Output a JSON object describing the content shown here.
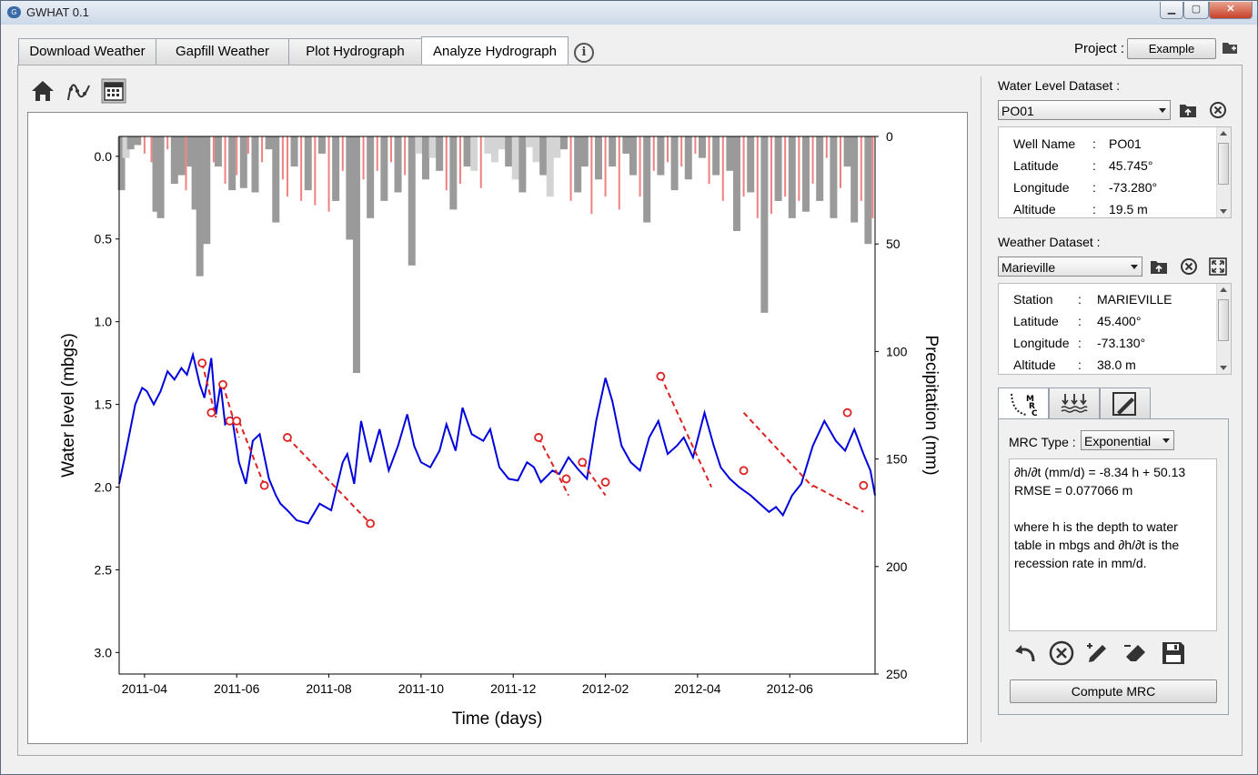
{
  "window": {
    "title": "GWHAT 0.1",
    "app_icon": "G"
  },
  "tabs": [
    {
      "label": "Download Weather"
    },
    {
      "label": "Gapfill Weather"
    },
    {
      "label": "Plot Hydrograph"
    },
    {
      "label": "Analyze Hydrograph",
      "active": true
    }
  ],
  "project": {
    "label": "Project :",
    "name": "Example"
  },
  "water_level": {
    "label": "Water Level Dataset :",
    "selected": "PO01",
    "rows": [
      {
        "key": "Well Name",
        "sep": ":",
        "value": "PO01"
      },
      {
        "key": "Latitude",
        "sep": ":",
        "value": "45.745°"
      },
      {
        "key": "Longitude",
        "sep": ":",
        "value": "-73.280°"
      },
      {
        "key": "Altitude",
        "sep": ":",
        "value": "19.5 m"
      }
    ]
  },
  "weather": {
    "label": "Weather Dataset :",
    "selected": "Marieville",
    "rows": [
      {
        "key": "Station",
        "sep": ":",
        "value": "MARIEVILLE"
      },
      {
        "key": "Latitude",
        "sep": ":",
        "value": "45.400°"
      },
      {
        "key": "Longitude",
        "sep": ":",
        "value": "-73.130°"
      },
      {
        "key": "Altitude",
        "sep": ":",
        "value": "38.0 m"
      }
    ]
  },
  "mrc": {
    "type_label": "MRC Type :",
    "type_selected": "Exponential",
    "result_lines": [
      "∂h/∂t (mm/d) = -8.34 h + 50.13",
      "RMSE = 0.077066 m",
      "",
      "where h is the depth to water",
      "table in mbgs and ∂h/∂t is the",
      "recession rate in mm/d."
    ],
    "compute_label": "Compute MRC"
  },
  "chart_data": {
    "type": "line",
    "xlabel": "Time (days)",
    "ylabel": "Water level (mbgs)",
    "y2label": "Precipitation (mm)",
    "x_ticks": [
      "2011-04",
      "2011-06",
      "2011-08",
      "2011-10",
      "2011-12",
      "2012-02",
      "2012-04",
      "2012-06"
    ],
    "x_tick_months": [
      1,
      3,
      5,
      7,
      9,
      11,
      13,
      15
    ],
    "xlim_months": [
      0.45,
      16.85
    ],
    "ylim": [
      3.13,
      -0.12
    ],
    "y_ticks": [
      0.0,
      0.5,
      1.0,
      1.5,
      2.0,
      2.5,
      3.0
    ],
    "y2lim": [
      0,
      250
    ],
    "y2_ticks": [
      0,
      50,
      100,
      150,
      200,
      250
    ],
    "colors": {
      "water_level": "#0000dd",
      "rain": "#f08080",
      "snow": "#9a9a9a",
      "snow_light": "#d4d4d4",
      "mrc": "#dd2222"
    },
    "water_level_series": {
      "name": "Water level",
      "x_months": [
        0.45,
        0.6,
        0.8,
        0.95,
        1.05,
        1.2,
        1.35,
        1.5,
        1.65,
        1.8,
        1.92,
        2.05,
        2.2,
        2.3,
        2.45,
        2.55,
        2.65,
        2.75,
        2.9,
        3.05,
        3.2,
        3.35,
        3.5,
        3.7,
        3.85,
        3.95,
        4.1,
        4.3,
        4.55,
        4.8,
        5.05,
        5.3,
        5.4,
        5.55,
        5.7,
        5.9,
        6.1,
        6.3,
        6.5,
        6.7,
        6.85,
        7.0,
        7.2,
        7.4,
        7.55,
        7.75,
        7.9,
        8.1,
        8.35,
        8.5,
        8.7,
        8.9,
        9.1,
        9.3,
        9.45,
        9.6,
        9.85,
        10.0,
        10.2,
        10.4,
        10.6,
        10.8,
        11.0,
        11.15,
        11.35,
        11.55,
        11.75,
        11.95,
        12.15,
        12.35,
        12.55,
        12.7,
        12.9,
        13.15,
        13.35,
        13.5,
        13.7,
        13.9,
        14.15,
        14.35,
        14.55,
        14.7,
        14.85,
        15.05,
        15.25,
        15.5,
        15.75,
        16.0,
        16.2,
        16.4,
        16.6,
        16.75,
        16.85
      ],
      "y": [
        1.98,
        1.78,
        1.5,
        1.4,
        1.42,
        1.5,
        1.42,
        1.3,
        1.35,
        1.28,
        1.32,
        1.2,
        1.38,
        1.46,
        1.22,
        1.56,
        1.38,
        1.62,
        1.58,
        1.85,
        1.98,
        1.72,
        1.68,
        1.95,
        2.05,
        2.1,
        2.14,
        2.2,
        2.22,
        2.1,
        2.14,
        1.85,
        1.8,
        1.98,
        1.6,
        1.85,
        1.65,
        1.9,
        1.75,
        1.56,
        1.75,
        1.85,
        1.88,
        1.78,
        1.62,
        1.78,
        1.52,
        1.68,
        1.72,
        1.65,
        1.88,
        1.95,
        1.96,
        1.85,
        1.88,
        1.97,
        1.9,
        1.92,
        1.82,
        1.89,
        1.95,
        1.6,
        1.34,
        1.48,
        1.75,
        1.85,
        1.9,
        1.7,
        1.6,
        1.8,
        1.75,
        1.7,
        1.82,
        1.55,
        1.75,
        1.88,
        1.95,
        2.0,
        2.05,
        2.1,
        2.15,
        2.12,
        2.17,
        2.05,
        1.98,
        1.75,
        1.6,
        1.72,
        1.78,
        1.65,
        1.8,
        1.9,
        2.05
      ]
    },
    "mrc_points": {
      "x_months": [
        2.25,
        2.45,
        2.7,
        2.85,
        3.0,
        3.6,
        4.1,
        5.9,
        9.55,
        10.15,
        10.5,
        11.0,
        12.2,
        14.0,
        16.25,
        16.6
      ],
      "y": [
        1.25,
        1.55,
        1.38,
        1.6,
        1.6,
        1.99,
        1.7,
        2.22,
        1.7,
        1.95,
        1.85,
        1.97,
        1.33,
        1.9,
        1.55,
        1.99
      ]
    },
    "mrc_segments": [
      {
        "x_months": [
          2.25,
          2.55
        ],
        "y": [
          1.25,
          1.58
        ]
      },
      {
        "x_months": [
          2.7,
          3.05
        ],
        "y": [
          1.38,
          1.7
        ]
      },
      {
        "x_months": [
          3.05,
          3.6
        ],
        "y": [
          1.6,
          1.99
        ]
      },
      {
        "x_months": [
          4.1,
          5.9
        ],
        "y": [
          1.7,
          2.22
        ]
      },
      {
        "x_months": [
          9.55,
          10.2
        ],
        "y": [
          1.7,
          2.05
        ]
      },
      {
        "x_months": [
          10.5,
          11.0
        ],
        "y": [
          1.85,
          2.05
        ]
      },
      {
        "x_months": [
          12.2,
          13.3
        ],
        "y": [
          1.33,
          2.0
        ]
      },
      {
        "x_months": [
          14.0,
          15.5
        ],
        "y": [
          1.55,
          2.0
        ]
      },
      {
        "x_months": [
          15.5,
          16.6
        ],
        "y": [
          1.99,
          2.15
        ]
      }
    ],
    "precip_bars": {
      "x_months": [
        0.5,
        0.6,
        0.7,
        0.85,
        1.0,
        1.15,
        1.25,
        1.35,
        1.5,
        1.65,
        1.8,
        1.9,
        2.0,
        2.1,
        2.2,
        2.35,
        2.5,
        2.6,
        2.75,
        2.9,
        3.0,
        3.15,
        3.25,
        3.4,
        3.55,
        3.7,
        3.85,
        4.0,
        4.1,
        4.25,
        4.4,
        4.55,
        4.7,
        4.85,
        5.0,
        5.15,
        5.3,
        5.45,
        5.6,
        5.75,
        5.9,
        6.05,
        6.2,
        6.35,
        6.5,
        6.65,
        6.8,
        6.95,
        7.1,
        7.25,
        7.4,
        7.55,
        7.7,
        7.85,
        8.0,
        8.15,
        8.3,
        8.45,
        8.6,
        8.75,
        8.9,
        9.05,
        9.2,
        9.35,
        9.5,
        9.65,
        9.8,
        9.95,
        10.1,
        10.25,
        10.4,
        10.55,
        10.7,
        10.85,
        11.0,
        11.15,
        11.3,
        11.45,
        11.6,
        11.75,
        11.9,
        12.05,
        12.2,
        12.35,
        12.5,
        12.65,
        12.8,
        12.95,
        13.1,
        13.25,
        13.4,
        13.55,
        13.7,
        13.85,
        14.0,
        14.15,
        14.3,
        14.45,
        14.6,
        14.75,
        14.9,
        15.05,
        15.2,
        15.35,
        15.5,
        15.65,
        15.8,
        15.95,
        16.1,
        16.25,
        16.4,
        16.55,
        16.7,
        16.8
      ],
      "heights_mm": [
        25,
        10,
        6,
        4,
        8,
        12,
        35,
        38,
        6,
        22,
        18,
        25,
        14,
        34,
        65,
        50,
        12,
        14,
        22,
        25,
        18,
        24,
        8,
        26,
        12,
        6,
        40,
        20,
        28,
        14,
        30,
        25,
        32,
        8,
        35,
        30,
        16,
        48,
        110,
        20,
        38,
        16,
        30,
        12,
        26,
        18,
        60,
        8,
        20,
        10,
        16,
        25,
        34,
        22,
        14,
        16,
        24,
        8,
        12,
        6,
        14,
        20,
        26,
        5,
        12,
        18,
        28,
        10,
        6,
        30,
        26,
        14,
        36,
        20,
        28,
        14,
        34,
        8,
        18,
        28,
        40,
        16,
        18,
        12,
        25,
        14,
        20,
        8,
        10,
        22,
        18,
        30,
        16,
        44,
        28,
        26,
        38,
        82,
        36,
        30,
        28,
        38,
        30,
        35,
        22,
        30,
        10,
        38,
        24,
        14,
        40,
        30,
        50,
        38
      ],
      "kinds": [
        "snow",
        "snow_light",
        "snow",
        "snow",
        "rain",
        "rain",
        "snow",
        "snow",
        "rain",
        "snow",
        "snow",
        "rain",
        "snow",
        "snow",
        "snow",
        "snow",
        "rain",
        "snow",
        "rain",
        "snow",
        "rain",
        "snow",
        "rain",
        "snow",
        "rain",
        "snow",
        "snow",
        "rain",
        "rain",
        "snow",
        "rain",
        "snow",
        "rain",
        "snow",
        "rain",
        "snow",
        "rain",
        "snow",
        "snow",
        "rain",
        "snow",
        "rain",
        "snow",
        "rain",
        "snow",
        "rain",
        "snow",
        "snow_light",
        "snow",
        "snow_light",
        "snow",
        "rain",
        "snow",
        "rain",
        "snow",
        "snow_light",
        "rain",
        "snow_light",
        "snow_light",
        "snow_light",
        "snow",
        "snow_light",
        "snow",
        "snow_light",
        "snow_light",
        "snow",
        "snow_light",
        "snow_light",
        "snow",
        "rain",
        "snow",
        "snow",
        "rain",
        "snow",
        "rain",
        "snow",
        "rain",
        "snow",
        "snow",
        "rain",
        "snow",
        "rain",
        "snow",
        "rain",
        "snow",
        "rain",
        "snow",
        "rain",
        "snow",
        "rain",
        "snow",
        "rain",
        "snow",
        "snow",
        "rain",
        "snow",
        "rain",
        "snow",
        "rain",
        "snow",
        "rain",
        "snow",
        "rain",
        "snow",
        "rain",
        "snow",
        "rain",
        "snow",
        "rain",
        "snow",
        "snow",
        "rain",
        "snow",
        "rain"
      ]
    }
  },
  "icons": {
    "home": "home-icon",
    "mrc_select": "curve-points-icon",
    "calendar": "calendar-icon",
    "folder_open": "folder-open-icon",
    "close": "close-circle-icon",
    "expand": "expand-icon",
    "undo": "undo-icon",
    "pencil": "pencil-icon",
    "eraser": "eraser-icon",
    "save": "save-icon"
  }
}
